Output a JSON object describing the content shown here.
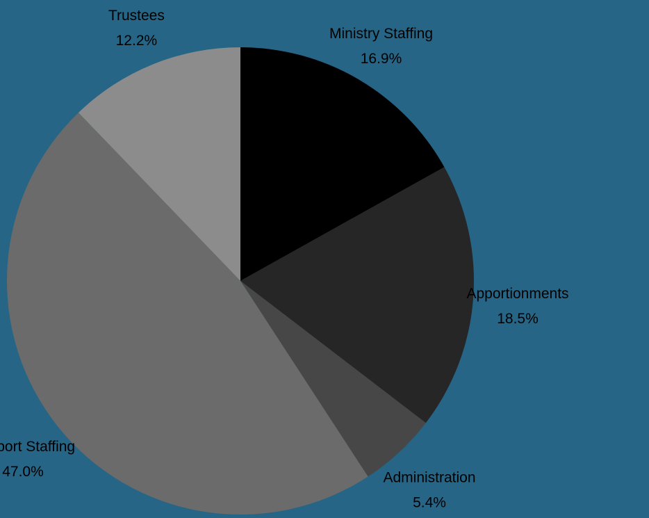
{
  "background": "#266586",
  "chart_data": {
    "type": "pie",
    "start_angle_deg": 0,
    "direction": "clockwise",
    "slices": [
      {
        "label": "Ministry Staffing",
        "value": 16.9,
        "pct_label": "16.9%",
        "color": "#000000"
      },
      {
        "label": "Apportionments",
        "value": 18.5,
        "pct_label": "18.5%",
        "color": "#262626"
      },
      {
        "label": "Administration",
        "value": 5.4,
        "pct_label": "5.4%",
        "color": "#474747"
      },
      {
        "label": "Support Staffing",
        "value": 47.0,
        "pct_label": "47.0%",
        "color": "#6b6b6b"
      },
      {
        "label": "Trustees",
        "value": 12.2,
        "pct_label": "12.2%",
        "color": "#8c8c8c"
      }
    ]
  }
}
